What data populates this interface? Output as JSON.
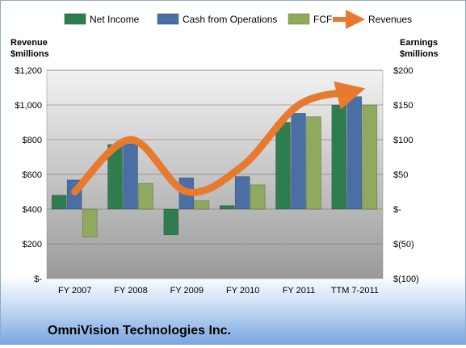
{
  "chart_data": {
    "type": "bar",
    "categories": [
      "FY 2007",
      "FY 2008",
      "FY 2009",
      "FY 2010",
      "FY 2011",
      "TTM 7-2011"
    ],
    "series": [
      {
        "name": "Net Income",
        "axis": "right",
        "color": "#2e7d4f",
        "values": [
          20,
          93,
          -37,
          5,
          125,
          150
        ]
      },
      {
        "name": "Cash from Operations",
        "axis": "right",
        "color": "#4a6fa5",
        "values": [
          42,
          94,
          45,
          47,
          138,
          162
        ]
      },
      {
        "name": "FCF",
        "axis": "right",
        "color": "#8faa5c",
        "values": [
          -40,
          37,
          12,
          35,
          133,
          150
        ]
      },
      {
        "name": "Revenues",
        "axis": "left",
        "type": "line",
        "color": "#e87a30",
        "values": [
          500,
          800,
          500,
          650,
          1000,
          1080
        ]
      }
    ],
    "left_axis": {
      "label_line1": "Revenue",
      "label_line2": "$millions",
      "min": 0,
      "max": 1200,
      "step": 200,
      "ticks": [
        "$-",
        "$200",
        "$400",
        "$600",
        "$800",
        "$1,000",
        "$1,200"
      ]
    },
    "right_axis": {
      "label_line1": "Earnings",
      "label_line2": "$millions",
      "min": -100,
      "max": 200,
      "step": 50,
      "ticks": [
        "$(100)",
        "$(50)",
        "$-",
        "$50",
        "$100",
        "$150",
        "$200"
      ]
    },
    "grid": true,
    "legend_position": "top",
    "company": "OmniVision Technologies Inc."
  }
}
